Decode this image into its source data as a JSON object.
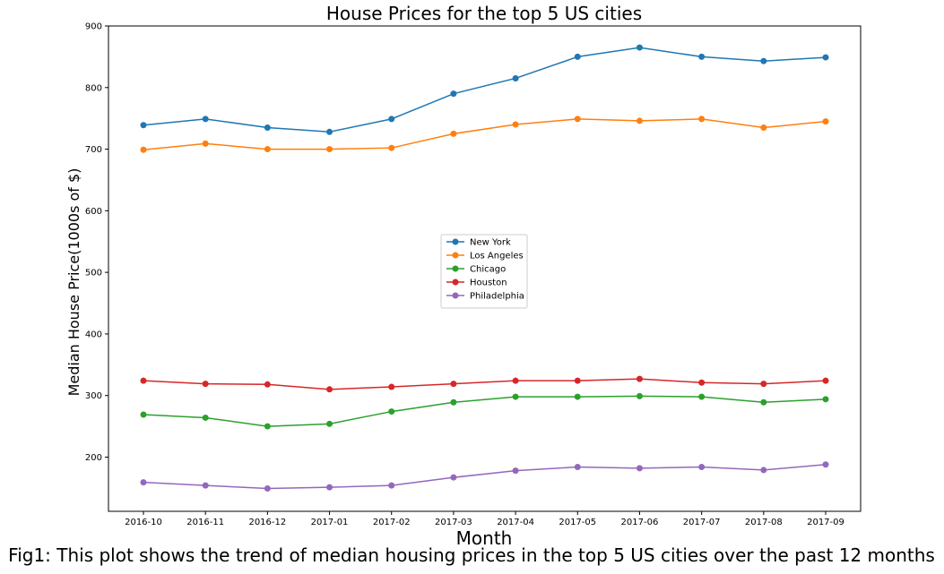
{
  "chart_data": {
    "type": "line",
    "title": "House Prices for the top 5 US cities",
    "xlabel": "Month",
    "ylabel": "Median House Price(1000s of $)",
    "caption": "Fig1: This plot shows the trend of median housing prices in the top 5 US cities over the past 12 months",
    "categories": [
      "2016-10",
      "2016-11",
      "2016-12",
      "2017-01",
      "2017-02",
      "2017-03",
      "2017-04",
      "2017-05",
      "2017-06",
      "2017-07",
      "2017-08",
      "2017-09"
    ],
    "ylim": [
      112,
      900
    ],
    "yticks": [
      200,
      300,
      400,
      500,
      600,
      700,
      800,
      900
    ],
    "grid": false,
    "legend_position": "center",
    "series": [
      {
        "name": "New York",
        "color": "#1f77b4",
        "values": [
          739,
          749,
          735,
          728,
          749,
          790,
          815,
          850,
          865,
          850,
          843,
          849
        ]
      },
      {
        "name": "Los Angeles",
        "color": "#ff7f0e",
        "values": [
          699,
          709,
          700,
          700,
          702,
          725,
          740,
          749,
          746,
          749,
          735,
          745
        ]
      },
      {
        "name": "Chicago",
        "color": "#2ca02c",
        "values": [
          269,
          264,
          250,
          254,
          274,
          289,
          298,
          298,
          299,
          298,
          289,
          294
        ]
      },
      {
        "name": "Houston",
        "color": "#d62728",
        "values": [
          324,
          319,
          318,
          310,
          314,
          319,
          324,
          324,
          327,
          321,
          319,
          324
        ]
      },
      {
        "name": "Philadelphia",
        "color": "#9467bd",
        "values": [
          159,
          154,
          149,
          151,
          154,
          167,
          178,
          184,
          182,
          184,
          179,
          188
        ]
      }
    ]
  }
}
